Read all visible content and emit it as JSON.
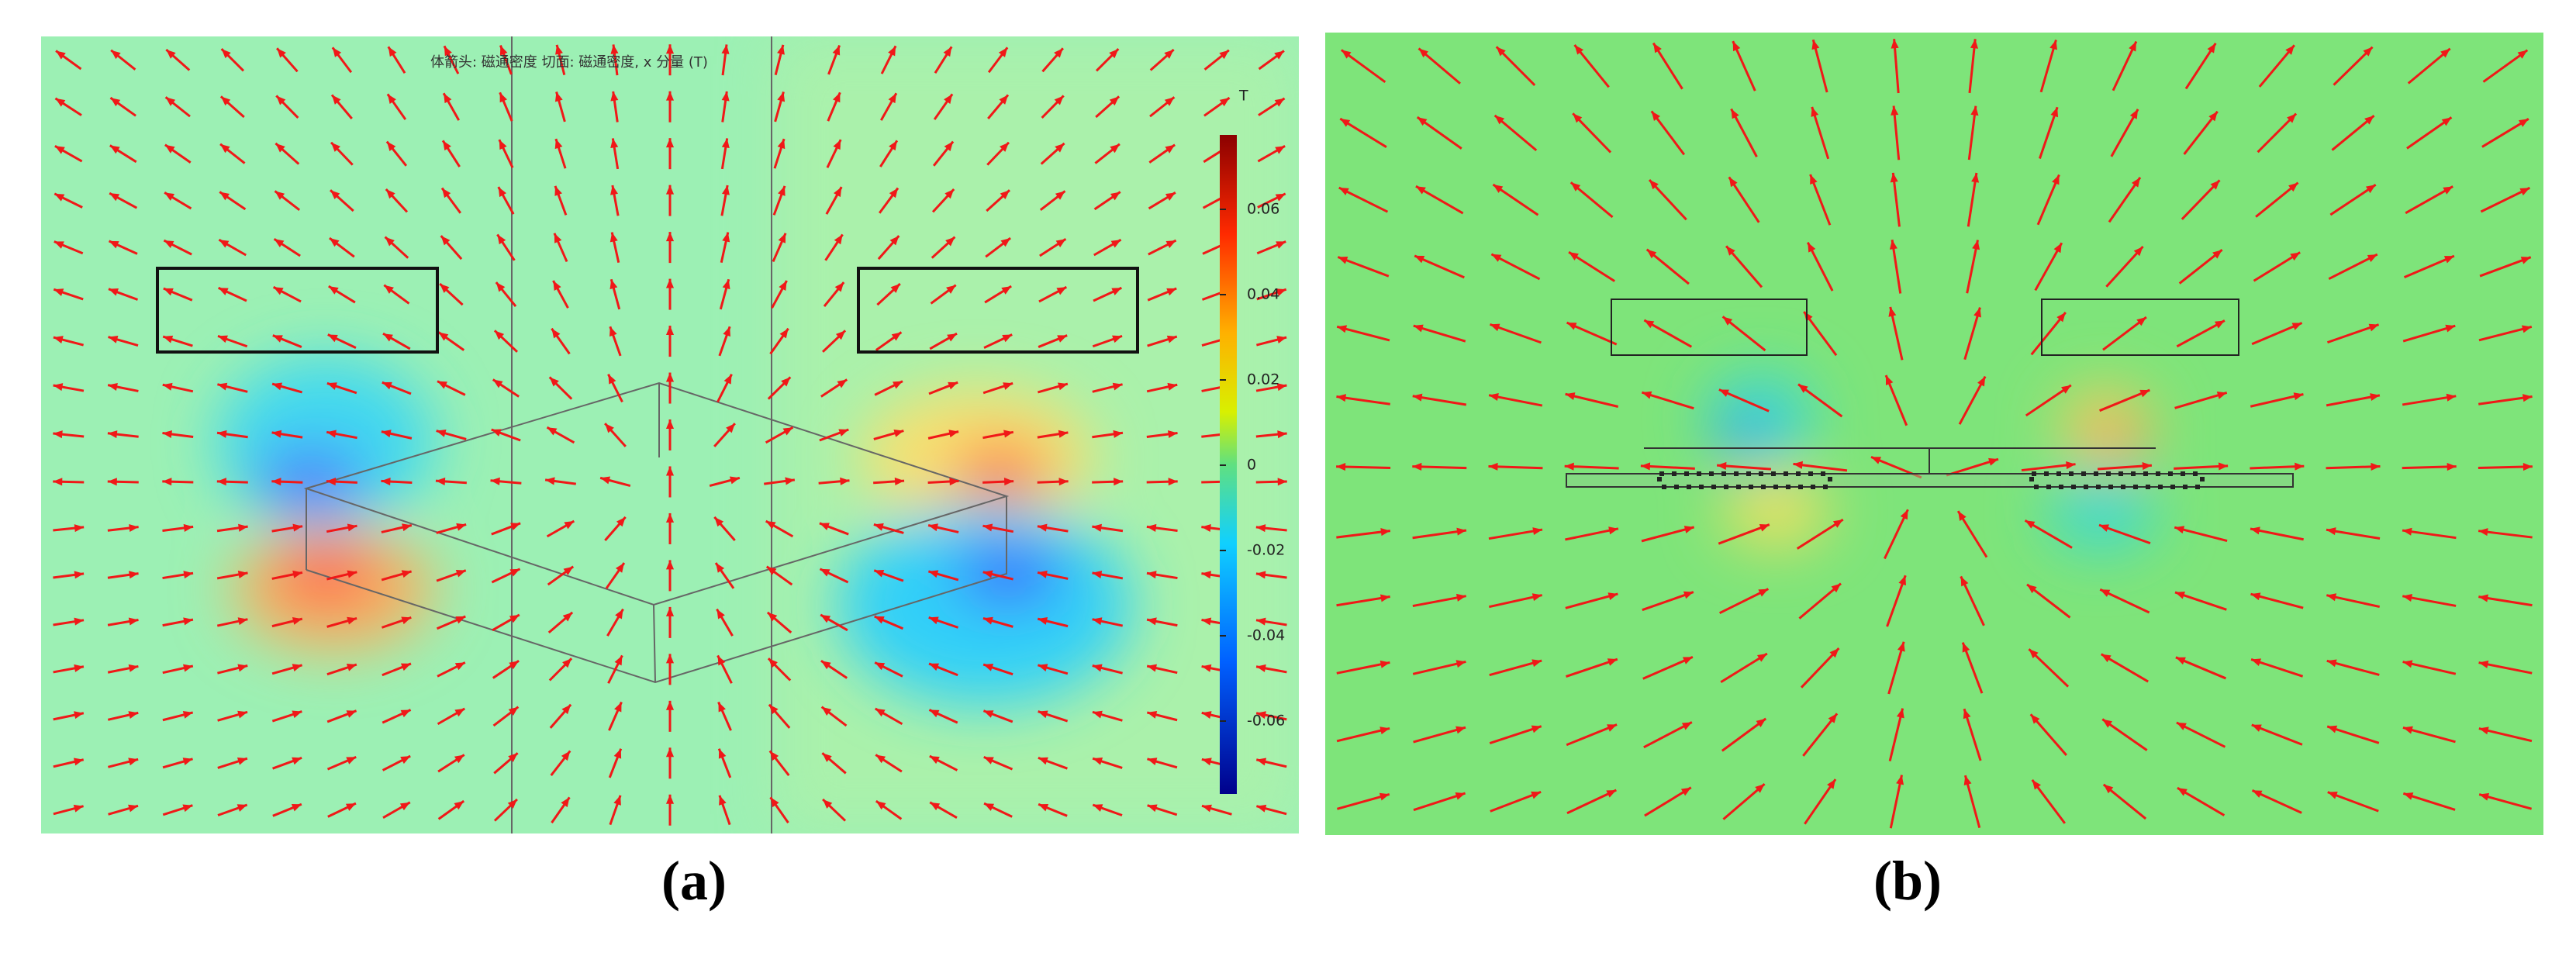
{
  "panel_a": {
    "title": "体箭头: 磁通密度  切面: 磁通密度, x 分量 (T)",
    "colorbar": {
      "unit": "T",
      "ticks": [
        0.06,
        0.04,
        0.02,
        0,
        -0.02,
        -0.04,
        -0.06
      ]
    },
    "caption": "(a)"
  },
  "panel_b": {
    "caption": "(b)"
  }
}
